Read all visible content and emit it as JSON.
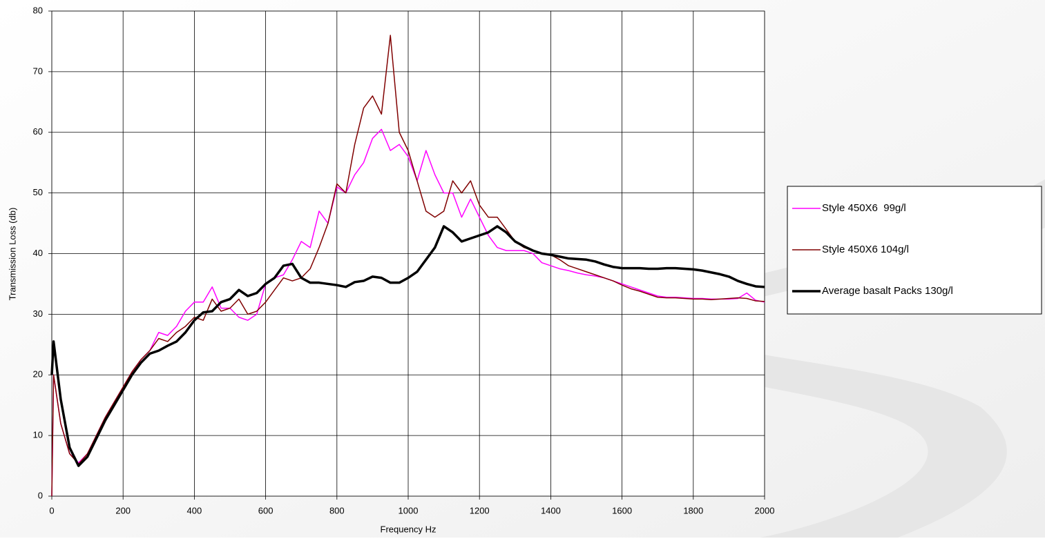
{
  "chart_data": {
    "type": "line",
    "xlabel": "Frequency Hz",
    "ylabel": "Transmission Loss (db)",
    "x": [
      0,
      5,
      25,
      50,
      75,
      100,
      125,
      150,
      175,
      200,
      225,
      250,
      275,
      300,
      325,
      350,
      375,
      400,
      425,
      450,
      475,
      500,
      525,
      550,
      575,
      600,
      625,
      650,
      675,
      700,
      725,
      750,
      775,
      800,
      825,
      850,
      875,
      900,
      925,
      950,
      975,
      1000,
      1025,
      1050,
      1075,
      1100,
      1125,
      1150,
      1175,
      1200,
      1225,
      1250,
      1275,
      1300,
      1325,
      1350,
      1375,
      1400,
      1425,
      1450,
      1475,
      1500,
      1525,
      1550,
      1575,
      1600,
      1625,
      1650,
      1675,
      1700,
      1725,
      1750,
      1775,
      1800,
      1825,
      1850,
      1875,
      1900,
      1925,
      1950,
      1975,
      2000
    ],
    "series": [
      {
        "name": "Style 450X6  99g/l",
        "color": "#ff00ff",
        "line_width": 1.5,
        "values": [
          0,
          20,
          12,
          7,
          5.5,
          7,
          10,
          13,
          15.5,
          18,
          20.5,
          22.5,
          24,
          27,
          26.5,
          28,
          30.5,
          32,
          32,
          34.5,
          31,
          31,
          29.5,
          29,
          30,
          35,
          36,
          36.5,
          39,
          42,
          41,
          47,
          45,
          51,
          50,
          53,
          55,
          59,
          60.5,
          57,
          58,
          56,
          52,
          57,
          53,
          50,
          50,
          46,
          49,
          46,
          43,
          41,
          40.5,
          40.5,
          40.5,
          40,
          38.5,
          38,
          37.5,
          37.2,
          36.8,
          36.5,
          36.3,
          36,
          35.5,
          35,
          34.5,
          34,
          33.5,
          33,
          32.8,
          32.8,
          32.7,
          32.6,
          32.6,
          32.5,
          32.5,
          32.5,
          32.6,
          33.5,
          32.3,
          32
        ]
      },
      {
        "name": "Style 450X6 104g/l",
        "color": "#800000",
        "line_width": 1.5,
        "values": [
          0,
          20,
          12,
          7,
          5.3,
          7,
          10,
          13,
          15.5,
          18,
          20.5,
          22.5,
          24,
          26,
          25.5,
          27,
          28,
          29.5,
          29,
          32.5,
          30.5,
          31,
          32.5,
          30,
          30.5,
          32,
          34,
          36,
          35.5,
          36,
          37.5,
          41,
          45,
          51.5,
          50,
          58,
          64,
          66,
          63,
          76,
          60,
          57,
          52,
          47,
          46,
          47,
          52,
          50,
          52,
          48,
          46,
          46,
          44,
          42,
          41,
          40.5,
          40,
          39.8,
          39,
          38,
          37.5,
          37,
          36.5,
          36,
          35.5,
          34.8,
          34.2,
          33.8,
          33.3,
          32.8,
          32.7,
          32.7,
          32.6,
          32.5,
          32.5,
          32.4,
          32.5,
          32.6,
          32.7,
          32.6,
          32.2,
          32.1
        ]
      },
      {
        "name": "Average basalt Packs 130g/l",
        "color": "#000000",
        "line_width": 3.5,
        "values": [
          20,
          25.5,
          16,
          8,
          5,
          6.5,
          9.5,
          12.5,
          15,
          17.5,
          20,
          22,
          23.5,
          24,
          24.8,
          25.5,
          27,
          29,
          30.3,
          30.5,
          32,
          32.5,
          34,
          33,
          33.5,
          35,
          36,
          38,
          38.3,
          36,
          35.2,
          35.2,
          35,
          34.8,
          34.5,
          35.3,
          35.5,
          36.2,
          36,
          35.2,
          35.2,
          36,
          37,
          39,
          41,
          44.5,
          43.5,
          42,
          42.5,
          43,
          43.5,
          44.5,
          43.5,
          42,
          41.2,
          40.5,
          40,
          39.8,
          39.5,
          39.2,
          39.1,
          39,
          38.7,
          38.2,
          37.8,
          37.6,
          37.6,
          37.6,
          37.5,
          37.5,
          37.6,
          37.6,
          37.5,
          37.4,
          37.2,
          36.9,
          36.6,
          36.2,
          35.5,
          35,
          34.6,
          34.5
        ]
      }
    ],
    "xlim": [
      0,
      2000
    ],
    "xticks": [
      0,
      200,
      400,
      600,
      800,
      1000,
      1200,
      1400,
      1600,
      1800,
      2000
    ],
    "ylim": [
      0,
      80
    ],
    "yticks": [
      0,
      10,
      20,
      30,
      40,
      50,
      60,
      70,
      80
    ],
    "grid": true,
    "legend": "right"
  }
}
